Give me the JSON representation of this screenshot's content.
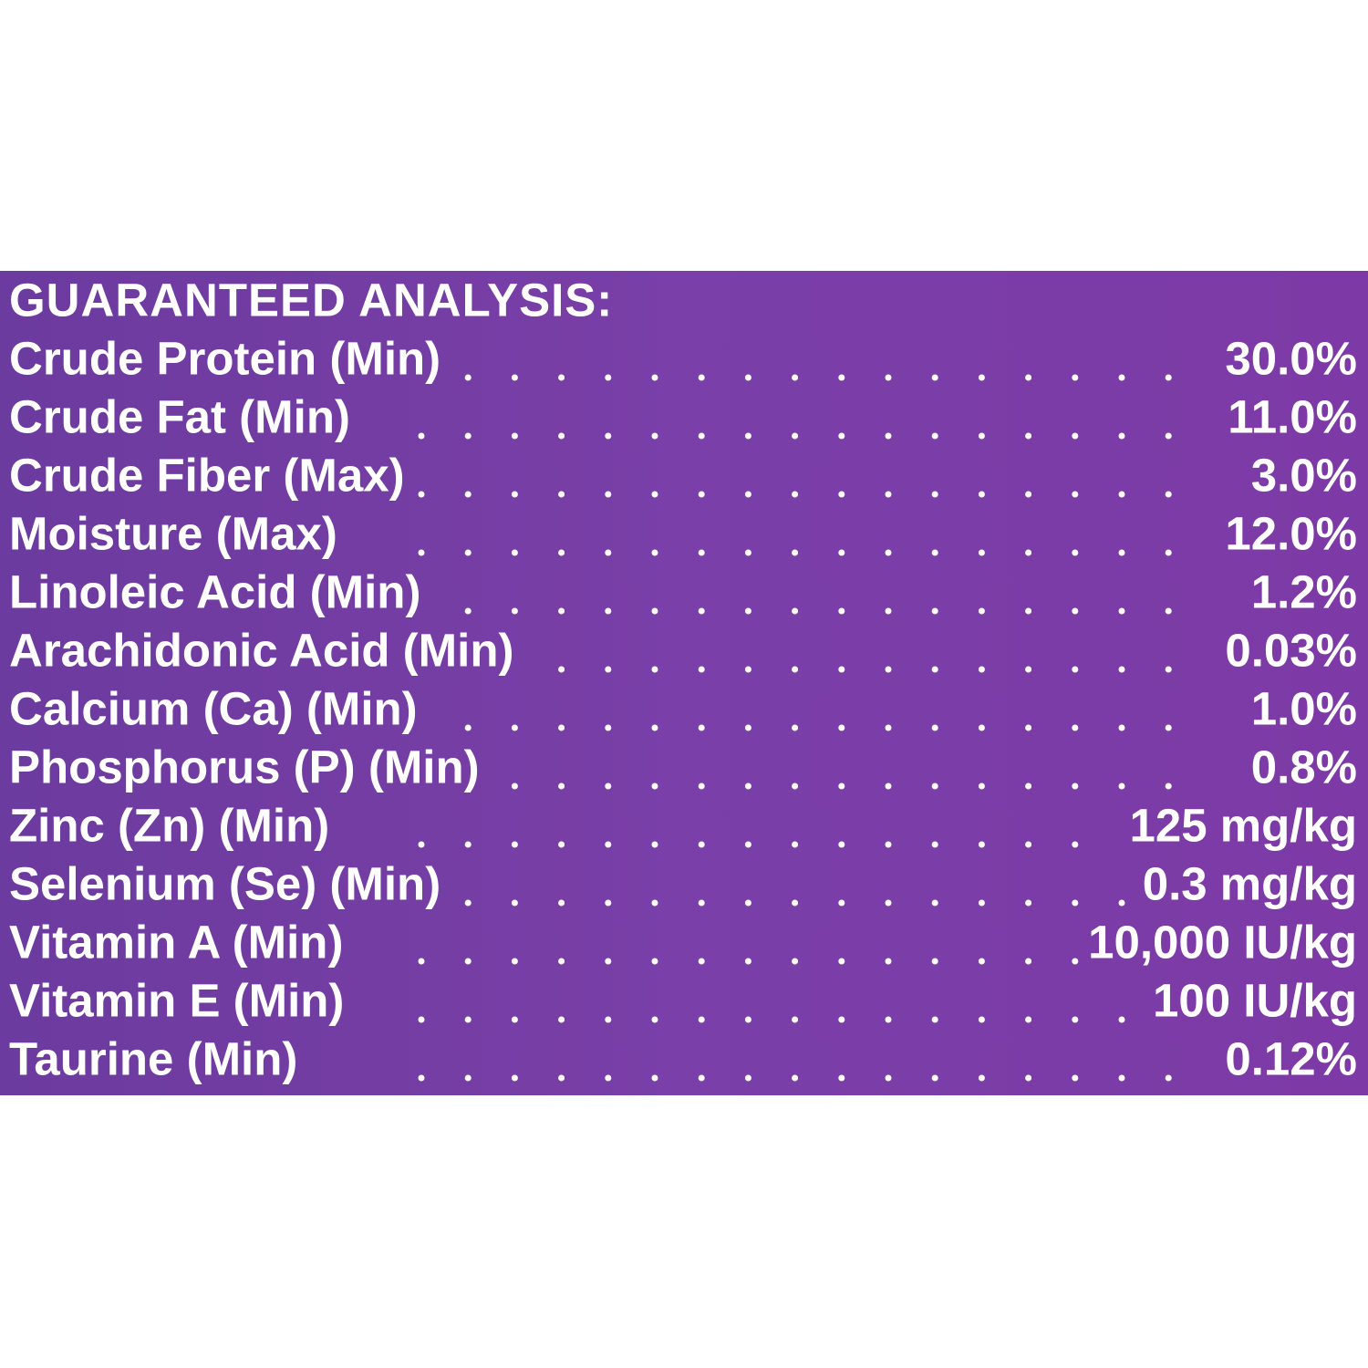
{
  "title": "GUARANTEED ANALYSIS:",
  "rows": [
    {
      "label": "Crude Protein (Min)",
      "value": "30.0%"
    },
    {
      "label": "Crude Fat (Min)",
      "value": "11.0%"
    },
    {
      "label": "Crude Fiber (Max)",
      "value": "3.0%"
    },
    {
      "label": "Moisture (Max)",
      "value": "12.0%"
    },
    {
      "label": "Linoleic Acid (Min)",
      "value": "1.2%"
    },
    {
      "label": "Arachidonic Acid (Min)",
      "value": "0.03%"
    },
    {
      "label": "Calcium (Ca) (Min)",
      "value": "1.0%"
    },
    {
      "label": "Phosphorus (P) (Min)",
      "value": "0.8%"
    },
    {
      "label": "Zinc (Zn) (Min)",
      "value": "125 mg/kg"
    },
    {
      "label": "Selenium (Se) (Min)",
      "value": "0.3 mg/kg"
    },
    {
      "label": "Vitamin A (Min)",
      "value": "10,000 IU/kg"
    },
    {
      "label": "Vitamin E (Min)",
      "value": "100 IU/kg"
    },
    {
      "label": "Taurine (Min)",
      "value": "0.12%"
    }
  ]
}
